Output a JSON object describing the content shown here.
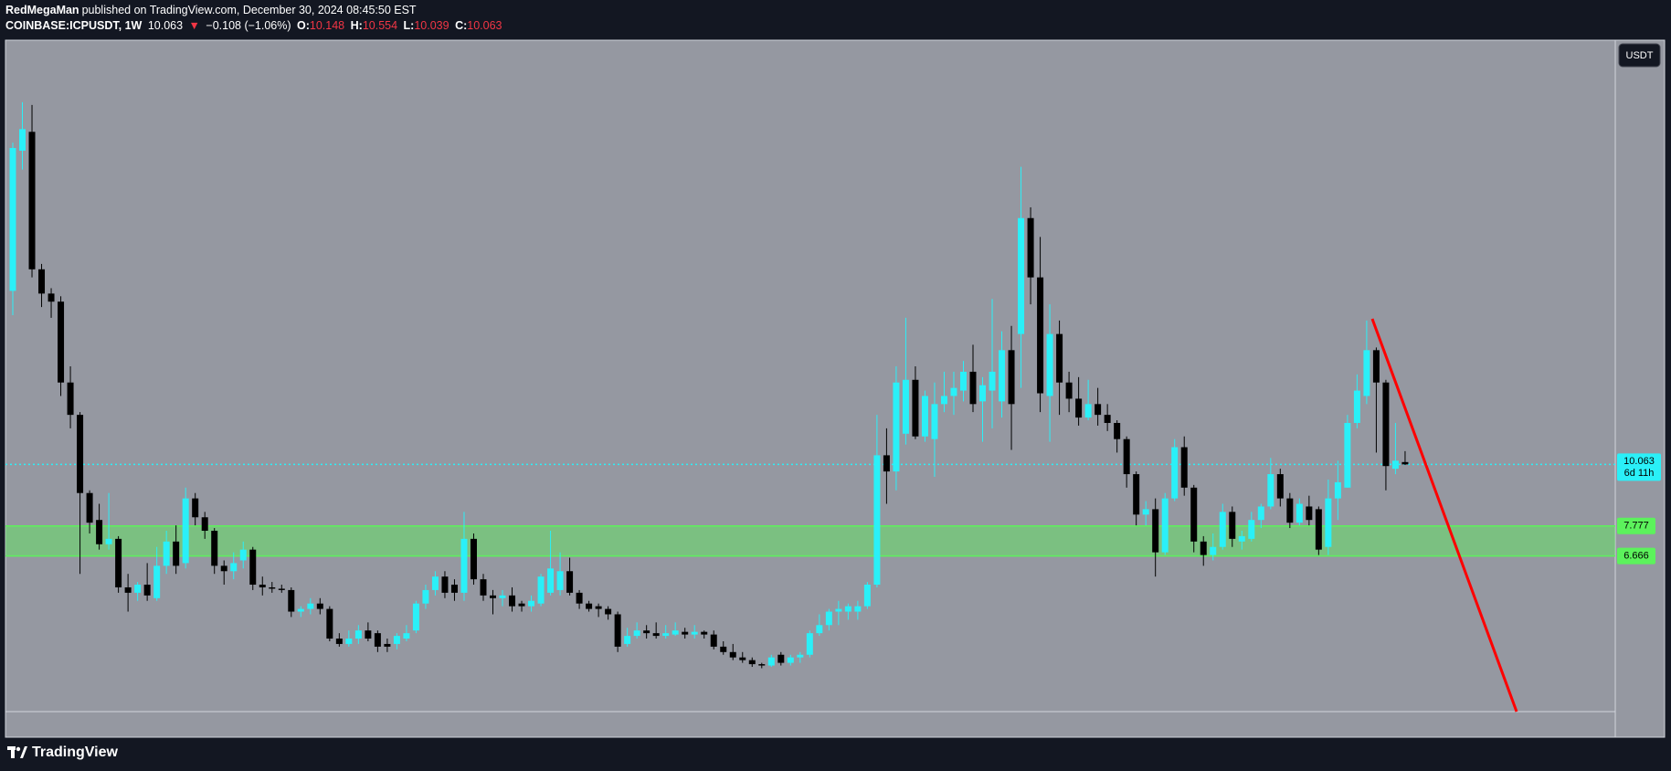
{
  "header": {
    "author": "RedMegaMan",
    "published": "published on TradingView.com, December 30, 2024 08:45:50 EST",
    "symbol": "COINBASE:ICPUSDT, 1W",
    "arrow": "▼",
    "change": "−0.108 (−1.06%)",
    "ohlc_labels": [
      "O:",
      "H:",
      "L:",
      "C:"
    ]
  },
  "footer": {
    "brand": "TradingView"
  },
  "chart_data": {
    "type": "candlestick",
    "currency": "USDT",
    "up_color": "#2af0f8",
    "down_color": "#000000",
    "ylim": [
      0.89,
      25.8
    ],
    "last_price": 10.063,
    "countdown": "6d 11h",
    "last_price_color": "#2af0f8",
    "zone": {
      "high": 7.777,
      "low": 6.666,
      "color": "#5cf25c"
    },
    "open": [
      16.5,
      21.7,
      22.4,
      17.3,
      16.4,
      16.1,
      13.1,
      11.9,
      9.0,
      8.0,
      7.1,
      7.3,
      5.5,
      5.3,
      5.6,
      5.1,
      6.3,
      7.2,
      6.4,
      8.8,
      8.1,
      7.6,
      6.3,
      6.1,
      6.5,
      6.9,
      5.6,
      5.5,
      5.45,
      5.4,
      4.6,
      4.7,
      4.9,
      4.7,
      3.6,
      3.4,
      3.6,
      3.9,
      3.8,
      3.4,
      3.4,
      3.6,
      3.9,
      4.9,
      5.4,
      5.9,
      5.6,
      5.3,
      7.3,
      5.8,
      5.2,
      5.1,
      5.2,
      4.9,
      4.8,
      4.9,
      5.3,
      5.4,
      6.1,
      5.3,
      4.9,
      4.8,
      4.7,
      4.5,
      3.4,
      3.7,
      3.9,
      3.8,
      3.7,
      3.75,
      3.85,
      3.75,
      3.85,
      3.75,
      3.3,
      3.1,
      2.9,
      2.8,
      2.65,
      2.6,
      3.0,
      2.7,
      2.9,
      3.0,
      3.8,
      4.1,
      4.6,
      4.6,
      4.6,
      4.8,
      5.6,
      10.4,
      9.8,
      11.2,
      13.2,
      11.1,
      11.0,
      12.3,
      12.6,
      12.8,
      13.5,
      12.4,
      12.8,
      12.4,
      14.3,
      14.9,
      19.2,
      17.0,
      12.6,
      14.9,
      13.1,
      12.5,
      11.8,
      12.3,
      11.9,
      11.6,
      11.0,
      9.7,
      8.2,
      8.4,
      6.8,
      8.8,
      10.7,
      9.2,
      7.2,
      6.7,
      7.0,
      8.3,
      7.2,
      7.3,
      8.0,
      8.5,
      9.7,
      8.8,
      7.9,
      8.5,
      8.4,
      7.0,
      8.8,
      9.2,
      11.6,
      12.6,
      14.3,
      13.1,
      9.9,
      10.148
    ],
    "high": [
      22,
      23.5,
      23.4,
      17.5,
      16.6,
      16.3,
      13.7,
      12,
      9.1,
      8.6,
      9.0,
      7.4,
      6.0,
      5.7,
      6.4,
      7.0,
      7.6,
      7.8,
      9.2,
      9.0,
      8.3,
      7.7,
      6.5,
      6.8,
      7.2,
      7.0,
      5.9,
      5.7,
      5.6,
      5.5,
      4.8,
      5.1,
      5.1,
      4.8,
      3.8,
      3.9,
      4.1,
      4.2,
      3.9,
      3.6,
      3.8,
      4.1,
      5.0,
      5.6,
      6.1,
      6.1,
      5.8,
      8.3,
      7.5,
      6.0,
      5.4,
      5.4,
      5.5,
      5.0,
      5.2,
      6.0,
      7.6,
      6.8,
      6.6,
      5.4,
      5.0,
      4.9,
      4.8,
      4.6,
      4.0,
      4.2,
      4.1,
      4.2,
      4.1,
      4.2,
      4.0,
      4.1,
      3.9,
      3.9,
      3.5,
      3.4,
      3.1,
      2.9,
      2.7,
      3.0,
      3.1,
      3.0,
      3.1,
      3.9,
      4.5,
      4.7,
      5.0,
      4.9,
      5.0,
      5.7,
      11.9,
      11.4,
      13.7,
      15.5,
      13.7,
      12.8,
      13.1,
      13.5,
      13.5,
      13.9,
      14.5,
      13.3,
      16.2,
      15.0,
      15.2,
      21.1,
      19.6,
      18.5,
      16.0,
      15.4,
      13.5,
      13.3,
      13.2,
      12.9,
      12.3,
      11.7,
      11.1,
      9.8,
      8.7,
      8.8,
      9.0,
      11.0,
      11.1,
      9.3,
      7.4,
      7.5,
      8.6,
      8.5,
      7.6,
      8.3,
      8.6,
      10.3,
      9.9,
      9.0,
      8.8,
      8.9,
      8.5,
      9.5,
      10.2,
      11.9,
      13.4,
      15.4,
      14.4,
      13.2,
      11.6,
      10.554
    ],
    "low": [
      15.6,
      21,
      17,
      15.9,
      15.5,
      12.6,
      11.4,
      6.0,
      7.5,
      6.9,
      6.9,
      5.3,
      4.6,
      5.0,
      5.0,
      5.0,
      6.0,
      6.0,
      6.2,
      7.8,
      7.3,
      6.0,
      5.6,
      5.8,
      6.2,
      5.4,
      5.2,
      5.3,
      5.3,
      4.4,
      4.4,
      4.5,
      4.5,
      3.5,
      3.3,
      3.3,
      3.4,
      3.5,
      3.1,
      3.1,
      3.2,
      3.5,
      3.8,
      4.7,
      5.2,
      5.1,
      5.0,
      5.0,
      5.6,
      5.0,
      4.5,
      4.8,
      4.6,
      4.6,
      4.6,
      4.8,
      5.2,
      5.2,
      5.2,
      4.7,
      4.6,
      4.4,
      4.3,
      3.1,
      3.3,
      3.6,
      3.6,
      3.6,
      3.6,
      3.7,
      3.6,
      3.6,
      3.6,
      3.2,
      3.0,
      2.8,
      2.7,
      2.55,
      2.5,
      2.55,
      2.6,
      2.6,
      2.7,
      2.9,
      3.7,
      3.9,
      4.1,
      4.3,
      4.3,
      4.7,
      5.5,
      8.6,
      9.1,
      10.8,
      11.0,
      10.9,
      9.6,
      12.0,
      11.9,
      12.4,
      12.0,
      10.9,
      11.4,
      11.8,
      10.6,
      12.9,
      16.0,
      12.0,
      10.9,
      11.9,
      12.0,
      11.5,
      11.7,
      11.5,
      11.3,
      10.5,
      9.2,
      7.8,
      7.8,
      5.9,
      6.7,
      8.7,
      8.9,
      6.8,
      6.3,
      6.5,
      6.9,
      7.0,
      6.9,
      7.2,
      7.7,
      8.4,
      8.5,
      7.7,
      7.8,
      7.8,
      6.7,
      6.7,
      8.0,
      9.2,
      11.4,
      12.3,
      10.5,
      9.1,
      9.7,
      10.039
    ],
    "close": [
      21.8,
      22.5,
      17.3,
      16.4,
      16.1,
      13.1,
      11.9,
      9.0,
      7.9,
      7.1,
      7.3,
      5.5,
      5.3,
      5.6,
      5.2,
      6.3,
      7.2,
      6.3,
      8.8,
      8.1,
      7.6,
      6.3,
      6.1,
      6.4,
      6.9,
      5.6,
      5.5,
      5.45,
      5.4,
      4.6,
      4.7,
      4.9,
      4.7,
      3.6,
      3.4,
      3.6,
      3.9,
      3.6,
      3.3,
      3.3,
      3.7,
      3.8,
      4.9,
      5.4,
      5.9,
      5.3,
      5.3,
      7.3,
      5.8,
      5.2,
      5.1,
      5.2,
      4.8,
      4.8,
      5.0,
      5.9,
      6.2,
      6.1,
      5.3,
      4.9,
      4.7,
      4.7,
      4.5,
      3.3,
      3.7,
      3.9,
      3.8,
      3.7,
      3.8,
      3.9,
      3.75,
      3.85,
      3.75,
      3.3,
      3.1,
      2.9,
      2.8,
      2.65,
      2.6,
      2.9,
      2.7,
      2.9,
      3.0,
      3.8,
      4.1,
      4.6,
      4.7,
      4.8,
      4.8,
      5.6,
      10.4,
      9.8,
      13.1,
      13.2,
      11.1,
      12.6,
      12.3,
      12.6,
      12.9,
      13.5,
      12.3,
      13.0,
      13.5,
      14.3,
      12.3,
      19.2,
      17.0,
      12.7,
      14.9,
      13.1,
      12.5,
      11.8,
      12.3,
      11.9,
      11.6,
      11.0,
      9.7,
      8.2,
      8.4,
      6.8,
      8.8,
      10.7,
      9.2,
      7.2,
      6.7,
      7.0,
      8.3,
      7.3,
      7.4,
      8.0,
      8.5,
      9.7,
      8.8,
      7.9,
      8.6,
      8.0,
      6.9,
      8.8,
      9.4,
      11.6,
      12.8,
      14.3,
      13.1,
      10.0,
      10.2,
      10.063
    ]
  }
}
